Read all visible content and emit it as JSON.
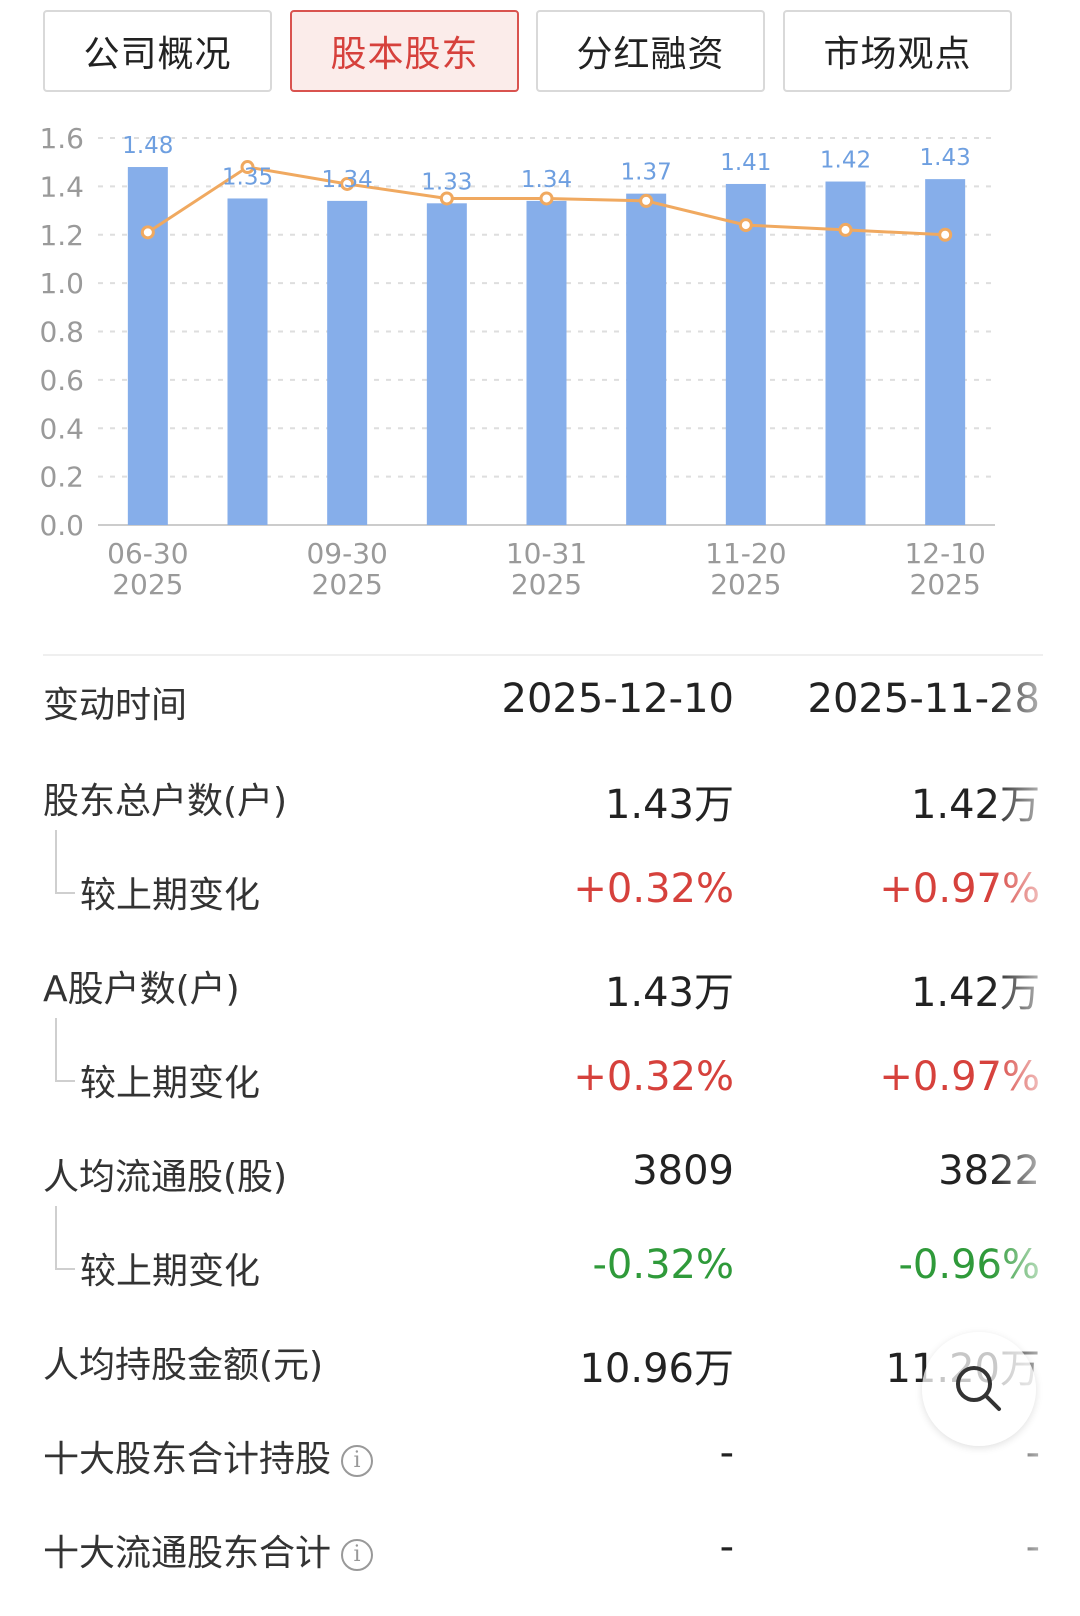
{
  "tabs": [
    {
      "label": "公司概况",
      "active": false
    },
    {
      "label": "股本股东",
      "active": true
    },
    {
      "label": "分红融资",
      "active": false
    },
    {
      "label": "市场观点",
      "active": false
    }
  ],
  "chart_data": {
    "type": "bar",
    "categories": [
      "06-30 2025",
      "",
      "09-30 2025",
      "",
      "10-31 2025",
      "",
      "11-20 2025",
      "",
      "12-10 2025"
    ],
    "x_tick_labels": [
      {
        "index": 0,
        "line1": "06-30",
        "line2": "2025"
      },
      {
        "index": 2,
        "line1": "09-30",
        "line2": "2025"
      },
      {
        "index": 4,
        "line1": "10-31",
        "line2": "2025"
      },
      {
        "index": 6,
        "line1": "11-20",
        "line2": "2025"
      },
      {
        "index": 8,
        "line1": "12-10",
        "line2": "2025"
      }
    ],
    "series": [
      {
        "type": "bar",
        "color": "#86aeea",
        "values": [
          1.48,
          1.35,
          1.34,
          1.33,
          1.34,
          1.37,
          1.41,
          1.42,
          1.43
        ]
      },
      {
        "type": "line",
        "color": "#f0a960",
        "values": [
          1.21,
          1.48,
          1.41,
          1.35,
          1.35,
          1.34,
          1.24,
          1.22,
          1.2
        ]
      }
    ],
    "bar_labels": [
      "1.48",
      "1.35",
      "1.34",
      "1.33",
      "1.34",
      "1.37",
      "1.41",
      "1.42",
      "1.43"
    ],
    "y_ticks": [
      "1.6",
      "1.4",
      "1.2",
      "1.0",
      "0.8",
      "0.6",
      "0.4",
      "0.2",
      "0.0"
    ],
    "ylim": [
      0,
      1.6
    ],
    "grid": true
  },
  "table": {
    "header": {
      "label": "变动时间",
      "col1": "2025-12-10",
      "col2": "2025-11-28"
    },
    "rows": [
      {
        "label": "股东总户数(户)",
        "col1": "1.43万",
        "col2": "1.42万"
      },
      {
        "label": "较上期变化",
        "col1": "+0.32%",
        "col2": "+0.97%"
      },
      {
        "label": "A股户数(户)",
        "col1": "1.43万",
        "col2": "1.42万"
      },
      {
        "label": "较上期变化",
        "col1": "+0.32%",
        "col2": "+0.97%"
      },
      {
        "label": "人均流通股(股)",
        "col1": "3809",
        "col2": "3822"
      },
      {
        "label": "较上期变化",
        "col1": "-0.32%",
        "col2": "-0.96%"
      },
      {
        "label": "人均持股金额(元)",
        "col1": "10.96万",
        "col2": "11.20万"
      },
      {
        "label": "十大股东合计持股",
        "col1": "-",
        "col2": "-"
      },
      {
        "label": "十大流通股东合计",
        "col1": "-",
        "col2": "-"
      }
    ]
  },
  "colors": {
    "positive": "#d6413c",
    "negative": "#2f9a3a",
    "bar": "#86aeea",
    "line": "#f0a960"
  },
  "icons": {
    "info": "info-icon",
    "zoom": "magnifier-icon"
  }
}
